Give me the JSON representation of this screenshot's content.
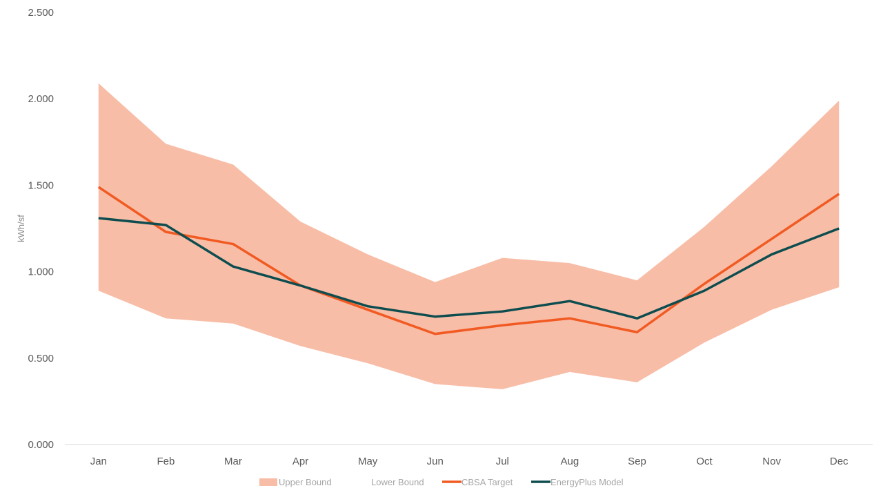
{
  "chart_data": {
    "type": "line",
    "title": "",
    "xlabel": "",
    "ylabel": "kWh/sf",
    "categories": [
      "Jan",
      "Feb",
      "Mar",
      "Apr",
      "May",
      "Jun",
      "Jul",
      "Aug",
      "Sep",
      "Oct",
      "Nov",
      "Dec"
    ],
    "y_ticks": [
      "0.000",
      "0.500",
      "1.000",
      "1.500",
      "2.000",
      "2.500"
    ],
    "ylim": [
      0,
      2.5
    ],
    "grid": false,
    "legend_position": "bottom",
    "series": [
      {
        "name": "Upper Bound",
        "kind": "area-upper",
        "color": "#f8bda7",
        "values": [
          2.09,
          1.74,
          1.62,
          1.29,
          1.1,
          0.94,
          1.08,
          1.05,
          0.95,
          1.26,
          1.61,
          1.99
        ]
      },
      {
        "name": "Lower Bound",
        "kind": "area-lower",
        "color": "#ffffff",
        "values": [
          0.89,
          0.73,
          0.7,
          0.57,
          0.47,
          0.35,
          0.32,
          0.42,
          0.36,
          0.59,
          0.78,
          0.91
        ]
      },
      {
        "name": "CBSA Target",
        "kind": "line",
        "color": "#f15a22",
        "values": [
          1.49,
          1.23,
          1.16,
          0.92,
          0.78,
          0.64,
          0.69,
          0.73,
          0.65,
          0.93,
          1.19,
          1.45
        ]
      },
      {
        "name": "EnergyPlus Model",
        "kind": "line",
        "color": "#0e4d4f",
        "values": [
          1.31,
          1.27,
          1.03,
          0.92,
          0.8,
          0.74,
          0.77,
          0.83,
          0.73,
          0.89,
          1.1,
          1.25
        ]
      }
    ]
  }
}
